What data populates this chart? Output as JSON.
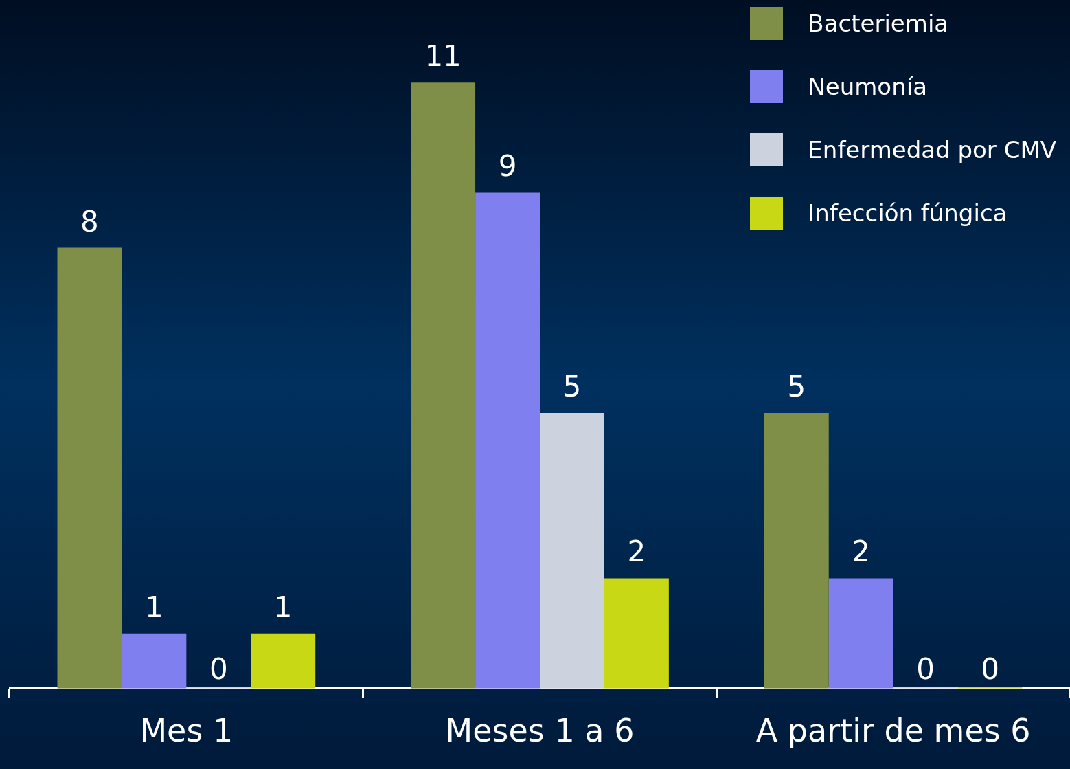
{
  "chart_data": {
    "type": "bar",
    "categories": [
      "Mes 1",
      "Meses 1 a 6",
      "A partir de mes 6"
    ],
    "series": [
      {
        "name": "Bacteriemia",
        "color": "#7f8f48",
        "values": [
          8,
          11,
          5
        ]
      },
      {
        "name": "Neumonía",
        "color": "#7f7ff0",
        "values": [
          1,
          9,
          2
        ]
      },
      {
        "name": "Enfermedad por CMV",
        "color": "#ccd2de",
        "values": [
          0,
          5,
          0
        ]
      },
      {
        "name": "Infección fúngica",
        "color": "#c8d814",
        "values": [
          1,
          2,
          0
        ]
      }
    ],
    "data_labels": true,
    "legend": "top right",
    "grid": false
  }
}
